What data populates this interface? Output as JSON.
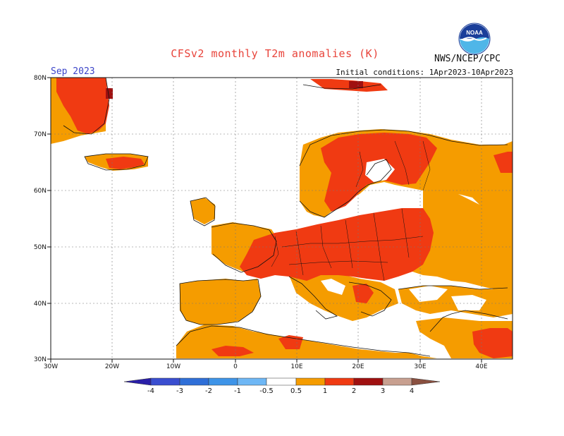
{
  "header": {
    "title": "CFSv2 monthly T2m anomalies (K)",
    "month": "Sep 2023",
    "initial_conditions": "Initial conditions: 1Apr2023-10Apr2023",
    "agency": "NWS/NCEP/CPC",
    "logo_text": "NOAA"
  },
  "map": {
    "lon_range": [
      -30,
      45
    ],
    "lat_range": [
      30,
      80
    ],
    "lat_labels": [
      "80N",
      "70N",
      "60N",
      "50N",
      "40N",
      "30N"
    ],
    "lon_labels": [
      "30W",
      "20W",
      "10W",
      "0",
      "10E",
      "20E",
      "30E",
      "40E"
    ]
  },
  "colorbar": {
    "labels": [
      "-4",
      "-3",
      "-2",
      "-1",
      "-0.5",
      "0.5",
      "1",
      "2",
      "3",
      "4"
    ],
    "colors": [
      "#2a1fa8",
      "#3a4ed0",
      "#2f6fd8",
      "#3e94e8",
      "#6eb7f5",
      "#ffffff",
      "#f59c00",
      "#f03a12",
      "#a01010",
      "#c8a090",
      "#8a5040"
    ]
  }
}
